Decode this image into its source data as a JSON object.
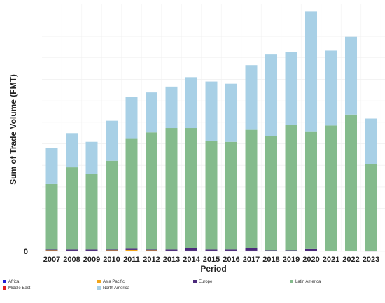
{
  "chart_data": {
    "type": "bar",
    "stacked": true,
    "title": "",
    "xlabel": "Period",
    "ylabel": "Sum of Trade Volume (FMT)",
    "ylim": [
      0,
      340
    ],
    "y_ticks": [
      0
    ],
    "grid": true,
    "legend_position": "bottom",
    "categories": [
      "2007",
      "2008",
      "2009",
      "2010",
      "2011",
      "2012",
      "2013",
      "2014",
      "2015",
      "2016",
      "2017",
      "2018",
      "2019",
      "2020",
      "2021",
      "2022",
      "2023"
    ],
    "series": [
      {
        "name": "Africa",
        "color": "#1f1fd6",
        "values": [
          0,
          0,
          0,
          0,
          0,
          0,
          0,
          0,
          0,
          0,
          0,
          0,
          0,
          0,
          0,
          0,
          0
        ]
      },
      {
        "name": "Asia Pacific",
        "color": "#f2a51a",
        "values": [
          1.5,
          1,
          1,
          1.5,
          2,
          1.5,
          1,
          1,
          1,
          1,
          1,
          1,
          0,
          0,
          0,
          0,
          0
        ]
      },
      {
        "name": "Europe",
        "color": "#4b2a7b",
        "values": [
          1,
          1.5,
          1.5,
          1,
          1.5,
          1,
          1.5,
          3.5,
          1.5,
          1.5,
          3,
          0.5,
          1.5,
          3,
          1,
          1,
          0.5
        ]
      },
      {
        "name": "Latin America",
        "color": "#84bb8c",
        "values": [
          90,
          113,
          104,
          122,
          152,
          161,
          167,
          165,
          149,
          148,
          163,
          157,
          172,
          162,
          172,
          187,
          119
        ]
      },
      {
        "name": "Middle East",
        "color": "#e01f1f",
        "values": [
          0,
          0,
          0,
          0,
          0,
          0,
          0,
          0,
          0,
          0,
          0,
          0,
          0,
          0,
          0,
          0,
          0
        ]
      },
      {
        "name": "North America",
        "color": "#a8d0e6",
        "values": [
          50,
          47,
          44,
          55,
          57,
          55,
          57,
          70,
          82,
          80,
          89,
          113,
          101,
          165,
          103,
          107,
          63
        ]
      }
    ]
  }
}
